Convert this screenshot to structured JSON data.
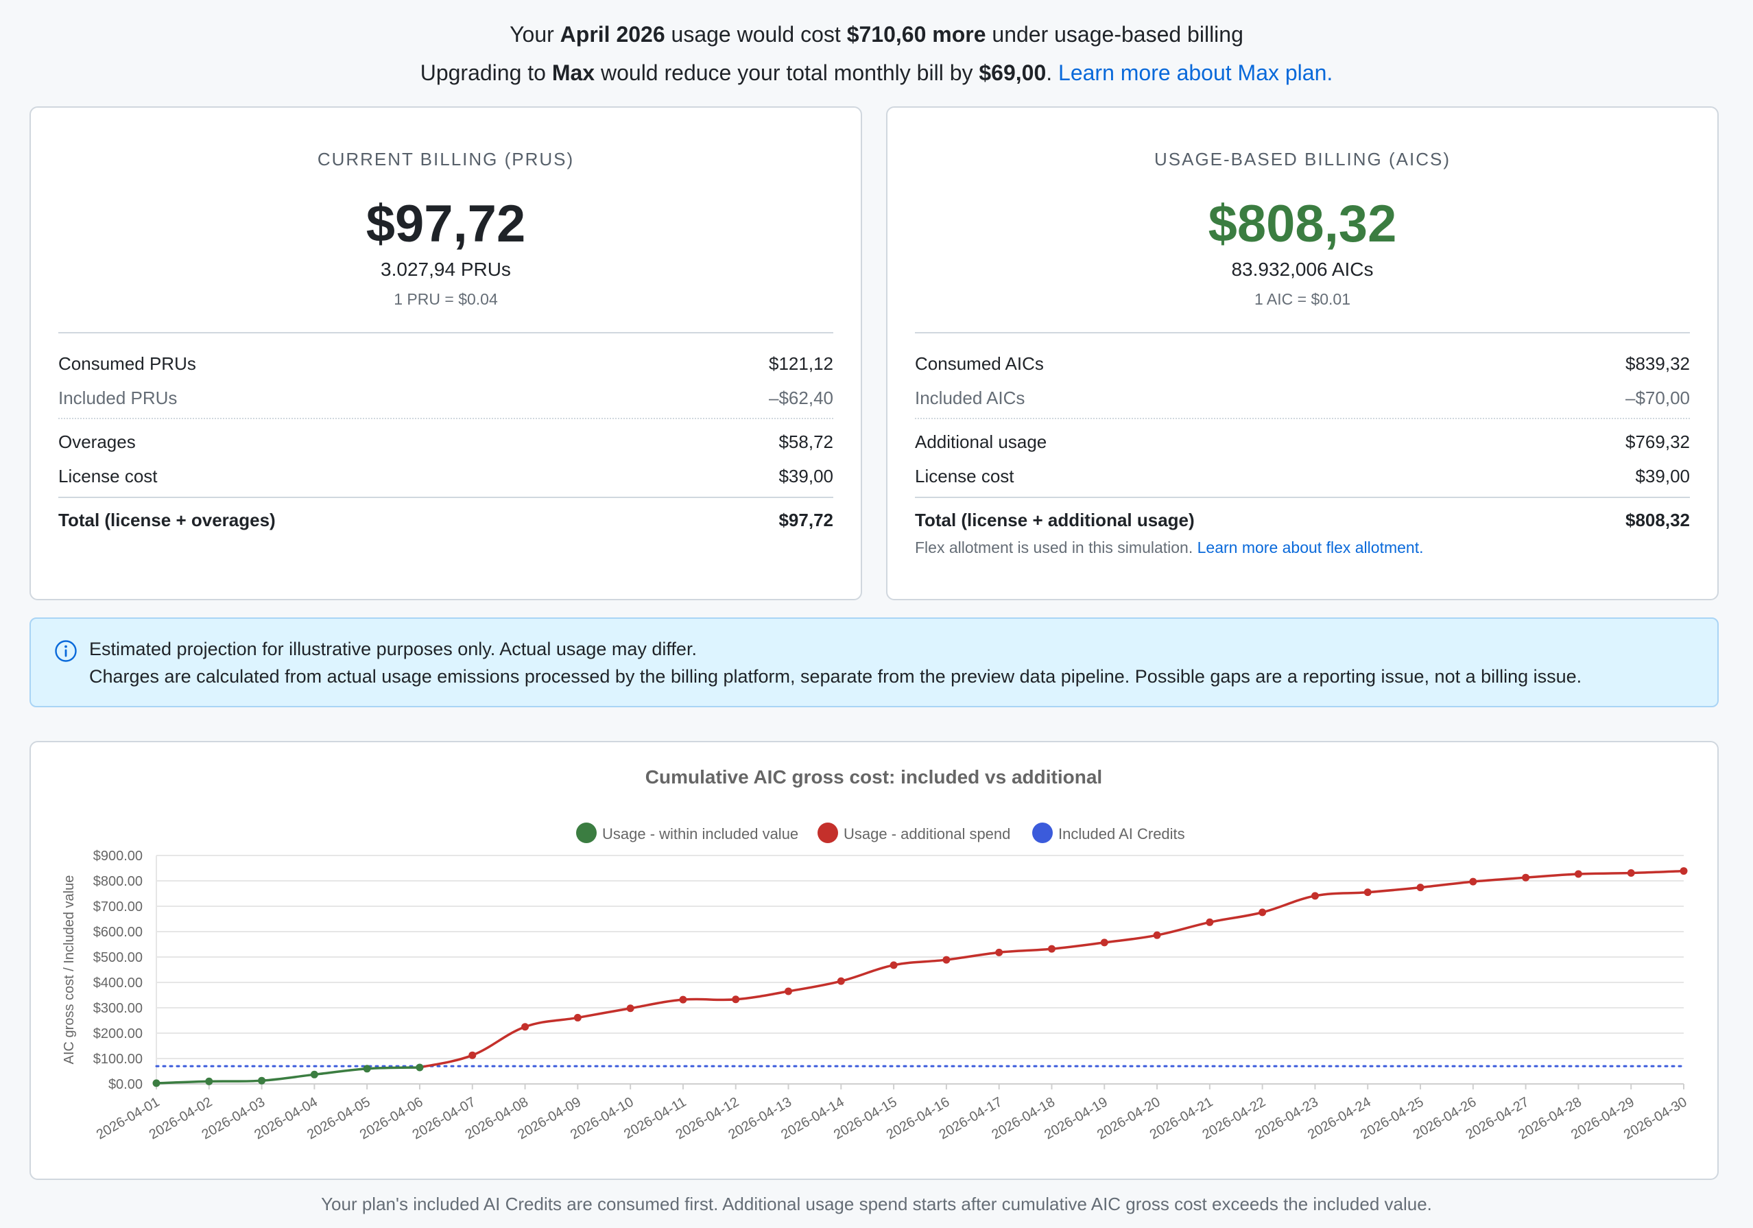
{
  "banner": {
    "line1": {
      "prefix": "Your ",
      "month": "April 2026",
      "mid": " usage would cost ",
      "amount": "$710,60 more",
      "suffix": " under usage-based billing"
    },
    "line2": {
      "prefix": "Upgrading to ",
      "plan": "Max",
      "mid": " would reduce your total monthly bill by ",
      "amount": "$69,00",
      "punct": ". ",
      "link": "Learn more about Max plan."
    }
  },
  "current": {
    "heading": "CURRENT BILLING (PRUS)",
    "amount": "$97,72",
    "units": "3.027,94 PRUs",
    "rate": "1 PRU = $0.04",
    "rows": [
      {
        "label": "Consumed PRUs",
        "value": "$121,12"
      },
      {
        "label": "Included PRUs",
        "value": "–$62,40"
      },
      {
        "label": "Overages",
        "value": "$58,72"
      },
      {
        "label": "License cost",
        "value": "$39,00"
      },
      {
        "label": "Total (license + overages)",
        "value": "$97,72"
      }
    ]
  },
  "usage": {
    "heading": "USAGE-BASED BILLING (AICS)",
    "amount": "$808,32",
    "units": "83.932,006 AICs",
    "rate": "1 AIC = $0.01",
    "rows": [
      {
        "label": "Consumed AICs",
        "value": "$839,32"
      },
      {
        "label": "Included AICs",
        "value": "–$70,00"
      },
      {
        "label": "Additional usage",
        "value": "$769,32"
      },
      {
        "label": "License cost",
        "value": "$39,00"
      },
      {
        "label": "Total (license + additional usage)",
        "value": "$808,32"
      }
    ],
    "note": "Flex allotment is used in this simulation. ",
    "note_link": "Learn more about flex allotment."
  },
  "info": {
    "icon": "info-circle-icon",
    "line1": "Estimated projection for illustrative purposes only. Actual usage may differ.",
    "line2": "Charges are calculated from actual usage emissions processed by the billing platform, separate from the preview data pipeline. Possible gaps are a reporting issue, not a billing issue."
  },
  "chart_data": {
    "type": "line",
    "title": "Cumulative AIC gross cost: included vs additional",
    "ylabel": "AIC gross cost / Included value",
    "xlabel": "",
    "ylim": [
      0,
      900
    ],
    "yticks": [
      "$0.00",
      "$100.00",
      "$200.00",
      "$300.00",
      "$400.00",
      "$500.00",
      "$600.00",
      "$700.00",
      "$800.00",
      "$900.00"
    ],
    "grid": true,
    "legend_position": "top-center",
    "x": [
      "2026-04-01",
      "2026-04-02",
      "2026-04-03",
      "2026-04-04",
      "2026-04-05",
      "2026-04-06",
      "2026-04-07",
      "2026-04-08",
      "2026-04-09",
      "2026-04-10",
      "2026-04-11",
      "2026-04-12",
      "2026-04-13",
      "2026-04-14",
      "2026-04-15",
      "2026-04-16",
      "2026-04-17",
      "2026-04-18",
      "2026-04-19",
      "2026-04-20",
      "2026-04-21",
      "2026-04-22",
      "2026-04-23",
      "2026-04-24",
      "2026-04-25",
      "2026-04-26",
      "2026-04-27",
      "2026-04-28",
      "2026-04-29",
      "2026-04-30"
    ],
    "cumulative_values": [
      3,
      10,
      13,
      37,
      60,
      65,
      113,
      225,
      261,
      298,
      332,
      333,
      365,
      405,
      468,
      489,
      518,
      532,
      557,
      586,
      637,
      676,
      741,
      755,
      774,
      797,
      813,
      827,
      831,
      839
    ],
    "series": [
      {
        "name": "Usage - within included value",
        "color": "#3b7d41",
        "segment": "within_included",
        "point_range": [
          0,
          5
        ]
      },
      {
        "name": "Usage - additional spend",
        "color": "#c4302b",
        "segment": "additional",
        "point_range": [
          5,
          29
        ]
      },
      {
        "name": "Included AI Credits",
        "color": "#3b5bdb",
        "style": "dotted",
        "value": 70
      }
    ]
  },
  "footer": {
    "note": "Your plan's included AI Credits are consumed first. Additional usage spend starts after cumulative AIC gross cost exceeds the included value."
  },
  "colors": {
    "accent_green": "#3b7d41",
    "accent_red": "#c4302b",
    "accent_blue": "#3b5bdb",
    "link": "#0969da"
  }
}
